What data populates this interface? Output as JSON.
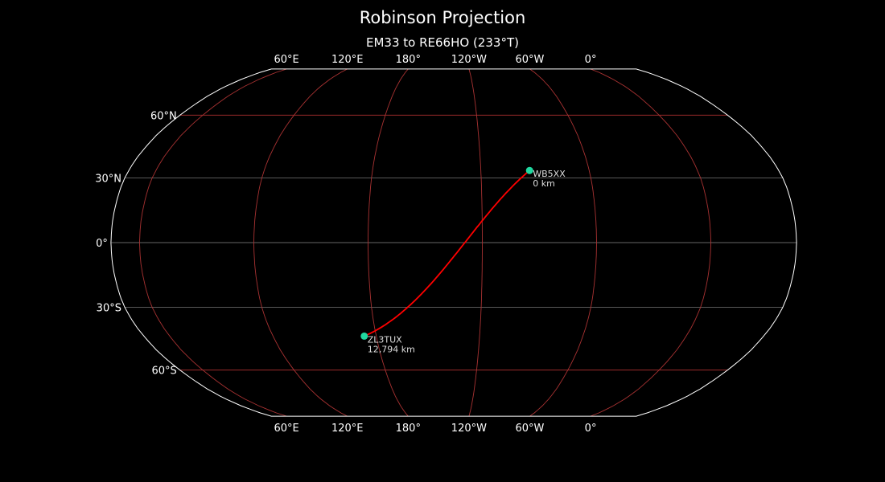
{
  "title": "Robinson Projection",
  "subtitle": "EM33 to RE66HO (233°T)",
  "projection": "robinson",
  "central_longitude": -135,
  "colors": {
    "background": "#000000",
    "coastline": "#888888",
    "meridian": "#a83232",
    "parallel_major": "#b03030",
    "parallel_minor": "#666666",
    "path": "#ff0000",
    "marker": "#20d8a0",
    "boundary": "#ffffff"
  },
  "lon_ticks": [
    {
      "lon": 60,
      "label": "60°E"
    },
    {
      "lon": 120,
      "label": "120°E"
    },
    {
      "lon": 180,
      "label": "180°"
    },
    {
      "lon": -120,
      "label": "120°W"
    },
    {
      "lon": -60,
      "label": "60°W"
    },
    {
      "lon": 0,
      "label": "0°"
    }
  ],
  "lat_ticks": [
    {
      "lat": 60,
      "label": "60°N"
    },
    {
      "lat": 30,
      "label": "30°N"
    },
    {
      "lat": 0,
      "label": "0°"
    },
    {
      "lat": -30,
      "label": "30°S"
    },
    {
      "lat": -60,
      "label": "60°S"
    }
  ],
  "points": [
    {
      "call": "WB5XX",
      "dist": "0 km",
      "lat": 33.5,
      "lon": -93
    },
    {
      "call": "ZL3TUX",
      "dist": "12,794 km",
      "lat": -43.5,
      "lon": 173
    }
  ]
}
